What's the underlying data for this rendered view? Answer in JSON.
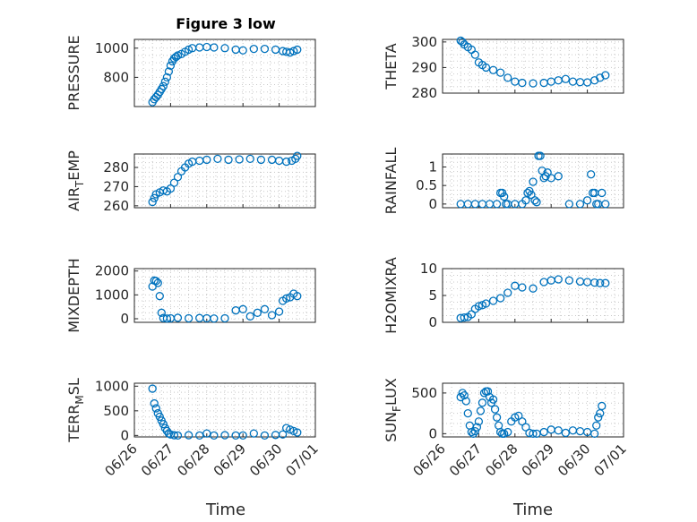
{
  "figure": {
    "title": "Figure 3 low",
    "xlabel": "Time",
    "marker_color": "#0072BD",
    "xtick_labels": [
      "06/26",
      "06/27",
      "06/28",
      "06/29",
      "06/30",
      "07/01"
    ]
  },
  "chart_data": [
    {
      "type": "scatter",
      "ylabel": "PRESSURE",
      "ylim": [
        600,
        1060
      ],
      "yticks": [
        800,
        1000
      ],
      "xlim": [
        "06/26",
        "07/01"
      ],
      "grid": true,
      "x_days": [
        0.5,
        0.55,
        0.6,
        0.65,
        0.7,
        0.75,
        0.8,
        0.85,
        0.9,
        0.95,
        1.0,
        1.05,
        1.1,
        1.15,
        1.2,
        1.3,
        1.4,
        1.5,
        1.6,
        1.8,
        2.0,
        2.2,
        2.5,
        2.8,
        3.0,
        3.3,
        3.6,
        3.9,
        4.1,
        4.2,
        4.3,
        4.4,
        4.5
      ],
      "values": [
        630,
        650,
        665,
        680,
        700,
        720,
        740,
        770,
        800,
        840,
        880,
        910,
        930,
        940,
        950,
        960,
        975,
        990,
        1000,
        1005,
        1008,
        1005,
        1000,
        990,
        985,
        995,
        995,
        990,
        980,
        975,
        970,
        980,
        990
      ]
    },
    {
      "type": "scatter",
      "ylabel": "THETA",
      "ylim": [
        280,
        301
      ],
      "yticks": [
        280,
        290,
        300
      ],
      "xlim": [
        "06/26",
        "07/01"
      ],
      "grid": true,
      "x_days": [
        0.5,
        0.55,
        0.6,
        0.7,
        0.8,
        0.9,
        1.0,
        1.1,
        1.2,
        1.4,
        1.6,
        1.8,
        2.0,
        2.2,
        2.5,
        2.8,
        3.0,
        3.2,
        3.4,
        3.6,
        3.8,
        4.0,
        4.2,
        4.35,
        4.5
      ],
      "values": [
        300.5,
        300,
        299,
        298,
        297,
        295,
        292,
        291,
        290,
        289,
        288,
        286,
        284.5,
        284,
        283.8,
        284,
        284.5,
        285,
        285.5,
        284.5,
        284.3,
        284.2,
        285,
        286,
        287
      ]
    },
    {
      "type": "scatter",
      "ylabel": "AIRTEMP",
      "ylabel_main": "AIR",
      "ylabel_sub": "T",
      "ylabel_rest": "EMP",
      "ylim": [
        259,
        287
      ],
      "yticks": [
        260,
        270,
        280
      ],
      "xlim": [
        "06/26",
        "07/01"
      ],
      "grid": true,
      "x_days": [
        0.5,
        0.55,
        0.6,
        0.7,
        0.8,
        0.9,
        1.0,
        1.1,
        1.2,
        1.3,
        1.4,
        1.5,
        1.6,
        1.8,
        2.0,
        2.3,
        2.6,
        2.9,
        3.2,
        3.5,
        3.8,
        4.0,
        4.2,
        4.35,
        4.45,
        4.5
      ],
      "values": [
        262,
        264,
        266,
        267,
        268,
        267.5,
        269,
        272,
        275,
        278,
        280,
        282,
        283,
        283.5,
        284,
        284.5,
        284,
        284.2,
        284.5,
        284,
        284,
        283.5,
        283,
        283.5,
        284.5,
        286
      ]
    },
    {
      "type": "scatter",
      "ylabel": "RAINFALL",
      "ylim": [
        -0.1,
        1.35
      ],
      "yticks": [
        0,
        0.5,
        1
      ],
      "xlim": [
        "06/26",
        "07/01"
      ],
      "grid": true,
      "x_days": [
        0.5,
        0.7,
        0.9,
        1.1,
        1.3,
        1.5,
        1.6,
        1.65,
        1.7,
        1.75,
        1.8,
        2.0,
        2.2,
        2.3,
        2.35,
        2.4,
        2.45,
        2.5,
        2.55,
        2.6,
        2.65,
        2.7,
        2.75,
        2.8,
        2.85,
        2.9,
        3.0,
        3.2,
        3.5,
        3.8,
        4.0,
        4.1,
        4.15,
        4.2,
        4.25,
        4.3,
        4.4,
        4.5
      ],
      "values": [
        0,
        0,
        0,
        0,
        0,
        0,
        0.3,
        0.3,
        0.2,
        0,
        0,
        0,
        0,
        0.1,
        0.3,
        0.35,
        0.25,
        0.6,
        0.1,
        0.05,
        1.3,
        1.3,
        0.9,
        0.7,
        0.75,
        0.85,
        0.7,
        0.75,
        0,
        0,
        0.1,
        0.8,
        0.3,
        0.3,
        0,
        0,
        0.3,
        0
      ]
    },
    {
      "type": "scatter",
      "ylabel": "MIXDEPTH",
      "ylim": [
        -150,
        2100
      ],
      "yticks": [
        0,
        1000,
        2000
      ],
      "xlim": [
        "06/26",
        "07/01"
      ],
      "grid": true,
      "x_days": [
        0.5,
        0.55,
        0.6,
        0.65,
        0.7,
        0.75,
        0.8,
        0.9,
        1.0,
        1.2,
        1.5,
        1.8,
        2.0,
        2.2,
        2.5,
        2.8,
        3.0,
        3.2,
        3.4,
        3.6,
        3.8,
        4.0,
        4.1,
        4.2,
        4.3,
        4.4,
        4.5
      ],
      "values": [
        1350,
        1600,
        1580,
        1500,
        950,
        250,
        30,
        10,
        20,
        40,
        20,
        30,
        20,
        10,
        20,
        350,
        400,
        100,
        250,
        400,
        150,
        300,
        750,
        850,
        900,
        1050,
        950
      ]
    },
    {
      "type": "scatter",
      "ylabel": "H2OMIXRA",
      "ylim": [
        0,
        10
      ],
      "yticks": [
        0,
        5,
        10
      ],
      "xlim": [
        "06/26",
        "07/01"
      ],
      "grid": true,
      "x_days": [
        0.5,
        0.6,
        0.7,
        0.8,
        0.9,
        1.0,
        1.1,
        1.2,
        1.4,
        1.6,
        1.8,
        2.0,
        2.2,
        2.5,
        2.8,
        3.0,
        3.2,
        3.5,
        3.8,
        4.0,
        4.2,
        4.35,
        4.5
      ],
      "values": [
        0.8,
        0.9,
        1.0,
        1.5,
        2.5,
        3.0,
        3.2,
        3.5,
        4.0,
        4.5,
        5.5,
        6.8,
        6.5,
        6.3,
        7.5,
        7.8,
        8.0,
        7.8,
        7.6,
        7.5,
        7.4,
        7.3,
        7.3
      ]
    },
    {
      "type": "scatter",
      "ylabel": "TERRMSL",
      "ylabel_main": "TERR",
      "ylabel_sub": "M",
      "ylabel_rest": "SL",
      "ylim": [
        -30,
        1060
      ],
      "yticks": [
        0,
        500,
        1000
      ],
      "xlim": [
        "06/26",
        "07/01"
      ],
      "grid": true,
      "x_days": [
        0.5,
        0.55,
        0.6,
        0.65,
        0.7,
        0.75,
        0.8,
        0.85,
        0.9,
        0.95,
        1.0,
        1.1,
        1.2,
        1.5,
        1.8,
        2.0,
        2.2,
        2.5,
        2.8,
        3.0,
        3.3,
        3.6,
        3.9,
        4.1,
        4.2,
        4.3,
        4.4,
        4.5
      ],
      "values": [
        950,
        650,
        550,
        450,
        380,
        300,
        230,
        150,
        90,
        40,
        20,
        5,
        0,
        5,
        0,
        40,
        0,
        5,
        0,
        0,
        40,
        0,
        10,
        20,
        150,
        120,
        90,
        60
      ]
    },
    {
      "type": "scatter",
      "ylabel": "SUNFLUX",
      "ylabel_main": "SUN",
      "ylabel_sub": "F",
      "ylabel_rest": "LUX",
      "ylim": [
        -40,
        620
      ],
      "yticks": [
        0,
        500
      ],
      "xlim": [
        "06/26",
        "07/01"
      ],
      "grid": true,
      "x_days": [
        0.5,
        0.55,
        0.6,
        0.65,
        0.7,
        0.75,
        0.8,
        0.85,
        0.9,
        0.95,
        1.0,
        1.05,
        1.1,
        1.15,
        1.2,
        1.25,
        1.3,
        1.35,
        1.4,
        1.45,
        1.5,
        1.55,
        1.6,
        1.65,
        1.7,
        1.8,
        1.9,
        2.0,
        2.1,
        2.2,
        2.3,
        2.4,
        2.5,
        2.6,
        2.8,
        3.0,
        3.2,
        3.4,
        3.6,
        3.8,
        4.0,
        4.2,
        4.25,
        4.3,
        4.35,
        4.4
      ],
      "values": [
        450,
        500,
        470,
        400,
        250,
        100,
        20,
        0,
        30,
        80,
        150,
        280,
        380,
        500,
        520,
        520,
        450,
        380,
        420,
        300,
        200,
        100,
        20,
        0,
        0,
        20,
        150,
        200,
        220,
        150,
        80,
        10,
        0,
        0,
        20,
        50,
        40,
        10,
        40,
        30,
        20,
        0,
        100,
        200,
        250,
        340
      ]
    }
  ]
}
